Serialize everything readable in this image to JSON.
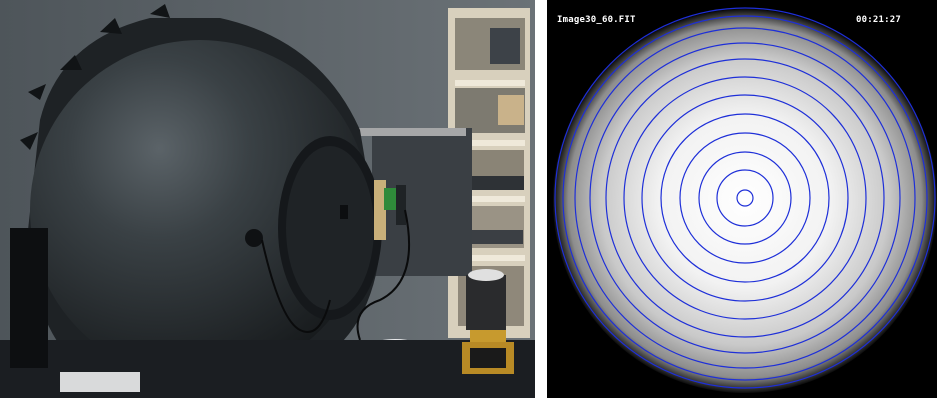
{
  "photo": {
    "description_icon": "integrating-sphere-photo",
    "colors": {
      "wall": "#5a6166",
      "sphere": "#262b2e",
      "sphere_highlight": "#5b6368",
      "port_plate": "#1a1d20",
      "shelf": "#d8d0bd",
      "floor": "#1b1e22"
    }
  },
  "scope": {
    "filename": "Image30_60.FIT",
    "timestamp": "00:21:27",
    "ring_color": "#1e2fd8",
    "background": "#000000"
  }
}
